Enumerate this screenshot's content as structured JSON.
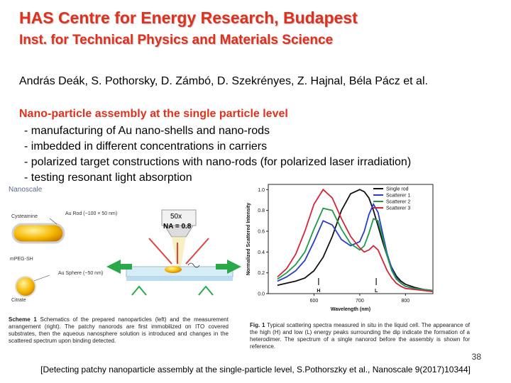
{
  "header": {
    "title": "HAS Centre for Energy Research, Budapest",
    "subtitle": "Inst. for Technical Physics and Materials Science"
  },
  "authors": "András Deák, S. Pothorsky, D. Zámbó, D. Szekrényes, Z. Hajnal, Béla Pácz et al.",
  "section": {
    "heading": "Nano-particle assembly at the single particle level",
    "bullets": [
      "- manufacturing of Au nano-shells and nano-rods",
      "- imbedded in different concentrations in carriers",
      "- polarized target constructions with nano-rods (for polarized laser irradiation)",
      "- testing resonant light absorption"
    ]
  },
  "scheme": {
    "journal_logo": "Nanoscale",
    "labels": {
      "au_rod": "Au Rod (~100 × 50 nm)",
      "cysteamine": "Cysteamine",
      "mpeg": "mPEG-SH",
      "au_sphere": "Au Sphere (~50 nm)",
      "citrate": "Citrate",
      "magnification": "50x",
      "na": "NA = 0.8"
    },
    "caption_bold": "Scheme 1",
    "caption": "Schematics of the prepared nanoparticles (left) and the measurement arrangement (right). The patchy nanorods are first immobilized on ITO covered substrates, then the aqueous nanosphere solution is introduced and changes in the scattered spectrum upon binding detected."
  },
  "figure": {
    "caption_bold": "Fig. 1",
    "caption": "Typical scattering spectra measured in situ in the liquid cell. The appearance of the high (H) and low (L) energy peaks surrounding the dip indicate the formation of a heterodimer. The spectrum of a single nanorod before the assembly is shown for reference.",
    "markers": {
      "h": "H",
      "l": "L"
    }
  },
  "chart_data": {
    "type": "line",
    "xlabel": "Wavelength (nm)",
    "ylabel": "Normalized Scattered Intensity",
    "xlim": [
      500,
      860
    ],
    "ylim": [
      0,
      1.05
    ],
    "x_ticks": [
      600,
      700,
      800
    ],
    "y_ticks": [
      "0.0",
      "0.2",
      "0.4",
      "0.6",
      "0.8",
      "1.0"
    ],
    "legend_position": "top-right",
    "x": [
      520,
      540,
      560,
      580,
      600,
      620,
      640,
      660,
      680,
      700,
      710,
      720,
      730,
      740,
      750,
      760,
      770,
      780,
      790,
      800,
      820,
      840,
      860
    ],
    "series": [
      {
        "name": "Single rod",
        "color": "#111111",
        "values": [
          0.08,
          0.1,
          0.12,
          0.15,
          0.22,
          0.35,
          0.55,
          0.8,
          0.96,
          1.0,
          0.98,
          0.92,
          0.8,
          0.65,
          0.5,
          0.36,
          0.25,
          0.17,
          0.12,
          0.09,
          0.06,
          0.04,
          0.03
        ]
      },
      {
        "name": "Scatterer 1",
        "color": "#2a3cc8",
        "values": [
          0.12,
          0.16,
          0.22,
          0.32,
          0.5,
          0.7,
          0.66,
          0.52,
          0.46,
          0.5,
          0.6,
          0.76,
          0.86,
          0.78,
          0.58,
          0.38,
          0.24,
          0.15,
          0.1,
          0.07,
          0.05,
          0.04,
          0.03
        ]
      },
      {
        "name": "Scatterer 2",
        "color": "#1e9a4a",
        "values": [
          0.14,
          0.2,
          0.28,
          0.4,
          0.62,
          0.82,
          0.8,
          0.62,
          0.48,
          0.42,
          0.46,
          0.58,
          0.72,
          0.7,
          0.54,
          0.36,
          0.22,
          0.14,
          0.1,
          0.07,
          0.05,
          0.04,
          0.03
        ]
      },
      {
        "name": "Scatterer 3",
        "color": "#d4243a",
        "values": [
          0.16,
          0.24,
          0.38,
          0.6,
          0.86,
          1.0,
          0.92,
          0.72,
          0.55,
          0.44,
          0.4,
          0.42,
          0.46,
          0.42,
          0.32,
          0.22,
          0.15,
          0.1,
          0.07,
          0.05,
          0.04,
          0.03,
          0.02
        ]
      }
    ]
  },
  "footer": {
    "page_number": "38",
    "citation": "[Detecting patchy nanoparticle assembly at the single-particle level, S.Pothorszky et al., Nanoscale 9(2017)10344]"
  }
}
